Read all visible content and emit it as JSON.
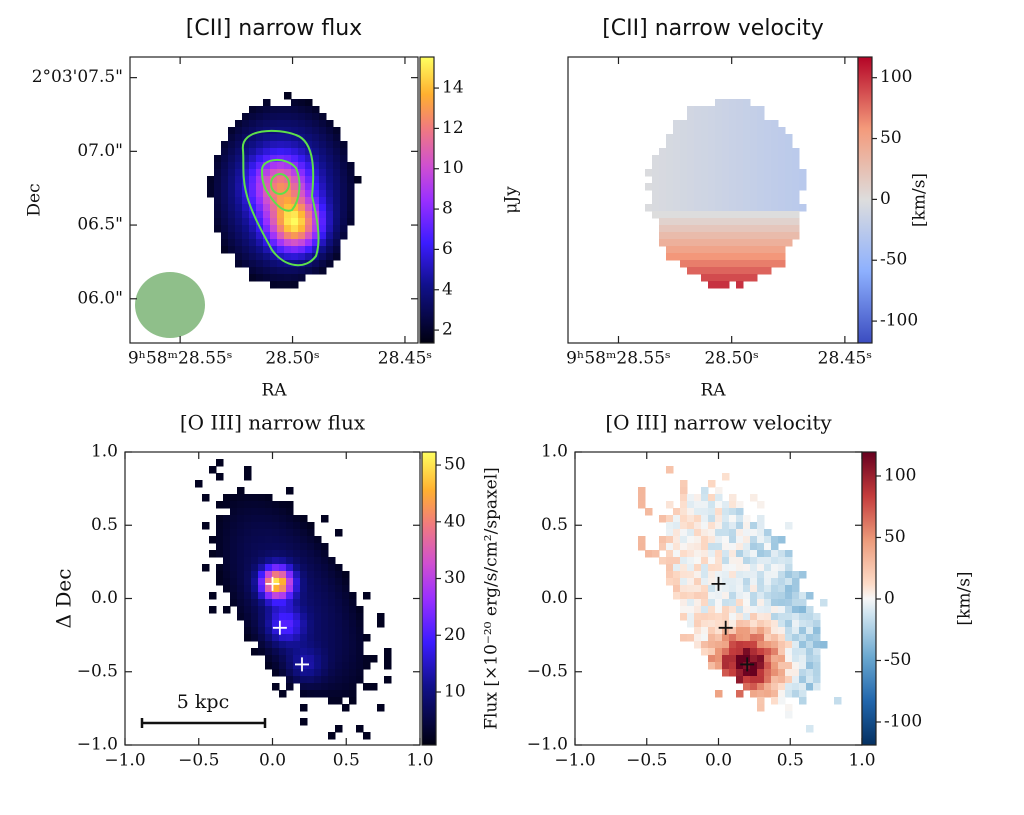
{
  "chart_data": [
    {
      "type": "heatmap",
      "title": "[CII] narrow flux",
      "xlabel": "RA",
      "ylabel": "Dec",
      "colormap": "gnuplot2",
      "xlim": [
        28.5723,
        28.4442
      ],
      "xticks": [
        {
          "value": 28.55,
          "label": "9ʰ58ᵐ28.55ˢ"
        },
        {
          "value": 28.5,
          "label": "28.50ˢ"
        },
        {
          "value": 28.45,
          "label": "28.45ˢ"
        }
      ],
      "ylim": [
        5.7,
        7.64
      ],
      "yticks": [
        {
          "value": 7.5,
          "label": "2°03'07.5\""
        },
        {
          "value": 7.0,
          "label": "07.0\""
        },
        {
          "value": 6.5,
          "label": "06.5\""
        },
        {
          "value": 6.0,
          "label": "06.0\""
        }
      ],
      "clim": [
        1.36,
        15.54
      ],
      "cticks": [
        2,
        4,
        6,
        8,
        10,
        12,
        14
      ],
      "colorbar_label": "μJy"
    },
    {
      "type": "heatmap",
      "title": "[CII] narrow velocity",
      "xlabel": "RA",
      "colormap": "coolwarm",
      "xlim": [
        28.5723,
        28.4442
      ],
      "xticks": [
        {
          "value": 28.55,
          "label": "9ʰ58ᵐ28.55ˢ"
        },
        {
          "value": 28.5,
          "label": "28.50ˢ"
        },
        {
          "value": 28.45,
          "label": "28.45ˢ"
        }
      ],
      "ylim": [
        5.7,
        7.64
      ],
      "clim": [
        -118,
        117
      ],
      "cticks": [
        100,
        50,
        0,
        -50,
        -100
      ],
      "colorbar_label": "[km/s]"
    },
    {
      "type": "heatmap",
      "title": "[O III] narrow flux",
      "ylabel": "Δ Dec",
      "colormap": "gnuplot2",
      "xlim": [
        -1,
        1
      ],
      "xticks": [
        {
          "value": -1,
          "label": "−1.0"
        },
        {
          "value": -0.5,
          "label": "−0.5"
        },
        {
          "value": 0,
          "label": "0.0"
        },
        {
          "value": 0.5,
          "label": "0.5"
        },
        {
          "value": 1,
          "label": "1.0"
        }
      ],
      "ylim": [
        -1,
        1
      ],
      "yticks": [
        {
          "value": 1,
          "label": "1.0"
        },
        {
          "value": 0.5,
          "label": "0.5"
        },
        {
          "value": 0,
          "label": "0.0"
        },
        {
          "value": -0.5,
          "label": "−0.5"
        },
        {
          "value": -1,
          "label": "−1.0"
        }
      ],
      "clim": [
        0.66,
        52.3
      ],
      "cticks": [
        10,
        20,
        30,
        40,
        50
      ],
      "colorbar_label": "Flux [×10⁻²⁰ erg/s/cm²/spaxel]",
      "annotation": "5 kpc",
      "markers": {
        "color": "#ffffff",
        "x": [
          0,
          0.05,
          0.2
        ],
        "y": [
          0.1,
          -0.2,
          -0.45
        ]
      }
    },
    {
      "type": "heatmap",
      "title": "[O III] narrow velocity",
      "colormap": "RdBu_r",
      "xlim": [
        -1,
        1
      ],
      "xticks": [
        {
          "value": -1,
          "label": "−1.0"
        },
        {
          "value": -0.5,
          "label": "−0.5"
        },
        {
          "value": 0,
          "label": "0.0"
        },
        {
          "value": 0.5,
          "label": "0.5"
        },
        {
          "value": 1,
          "label": "1.0"
        }
      ],
      "ylim": [
        -1,
        1
      ],
      "yticks": [
        {
          "value": 1,
          "label": "1.0"
        },
        {
          "value": 0.5,
          "label": "0.5"
        },
        {
          "value": 0,
          "label": "0.0"
        },
        {
          "value": -0.5,
          "label": "−0.5"
        },
        {
          "value": -1,
          "label": "−1.0"
        }
      ],
      "clim": [
        -118.7,
        119.5
      ],
      "cticks": [
        100,
        50,
        0,
        -50,
        -100
      ],
      "colorbar_label": "[km/s]",
      "markers": {
        "color": "#111111",
        "x": [
          0,
          0.05,
          0.2
        ],
        "y": [
          0.1,
          -0.2,
          -0.45
        ]
      }
    }
  ]
}
